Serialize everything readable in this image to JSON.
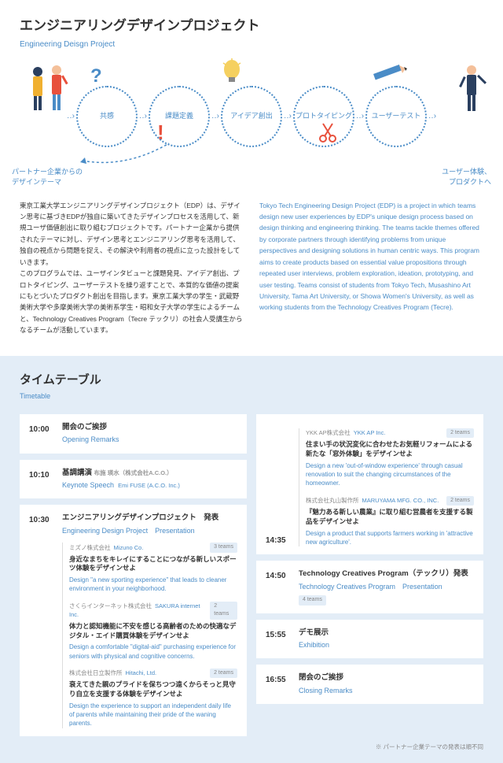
{
  "header": {
    "title_jp": "エンジニアリングデザインプロジェクト",
    "title_en": "Engineering Deisgn Project"
  },
  "process": {
    "steps": [
      "共感",
      "課題定義",
      "アイデア創出",
      "プロトタイピング",
      "ユーザーテスト"
    ],
    "label_left": "パートナー企業からの\nデザインテーマ",
    "label_right": "ユーザー体験、\nプロダクトへ",
    "colors": {
      "circle_border": "#4a8cc7",
      "accent": "#e8503c"
    }
  },
  "description": {
    "jp": "東京工業大学エンジニアリングデザインプロジェクト（EDP）は、デザイン思考に基づきEDPが独自に築いてきたデザインプロセスを活用して、新規ユーザ価値創出に取り組むプロジェクトです。パートナー企業から提供されたテーマに対し、デザイン思考とエンジニアリング思考を活用して、独自の視点から問題を捉え、その解決や利用者の視点に立った設計をしていきます。\nこのプログラムでは、ユーザインタビューと課題発見、アイデア創出、プロトタイピング、ユーザーテストを繰り返すことで、本質的な価値の提案にもとづいたプロダクト創出を目指します。東京工業大学の学生・武蔵野美術大学や多摩美術大学の美術系学生・昭和女子大学の学生によるチームと、Technology Creatives Program（Tecre テックリ）の社会人受講生からなるチームが活動しています。",
    "en": "Tokyo Tech Engineering Design Project (EDP) is a project in which teams design new user experiences by EDP's unique design process based on design thinking and engineering thinking. The teams tackle themes offered by corporate partners through identifying problems from unique perspectives and designing solutions in human centric ways. This program aims to create products based on essential value propositions through repeated user interviews, problem exploration, ideation, prototyping, and user testing. Teams consist of students from Tokyo Tech, Musashino Art University, Tama Art University, or Showa Women's University, as well as working students from the Technology Creatives Program (Tecre)."
  },
  "timetable": {
    "title_jp": "タイムテーブル",
    "title_en": "Timetable",
    "footnote": "※ パートナー企業テーマの発表は順不同",
    "left": [
      {
        "time": "10:00",
        "jp": "開会のご挨拶",
        "en": "Opening Remarks"
      },
      {
        "time": "10:10",
        "jp": "基調講演",
        "en": "Keynote Speech",
        "speaker_jp": "布施 瑛水（株式会社A.C.O.）",
        "speaker_en": "Emi FUSE (A.C.O. Inc.)"
      },
      {
        "time": "10:30",
        "jp": "エンジニアリングデザインプロジェクト　発表",
        "en": "Engineering Design Project　Presentation",
        "subs": [
          {
            "company_jp": "ミズノ株式会社",
            "company_en": "Mizuno Co.",
            "teams": "3 teams",
            "theme_jp": "身近なまちをキレイにすることにつながる新しいスポーツ体験をデザインせよ",
            "theme_en": "Design \"a new sporting experience\" that leads to cleaner environment in your neighborhood."
          },
          {
            "company_jp": "さくらインターネット株式会社",
            "company_en": "SAKURA internet Inc.",
            "teams": "2 teams",
            "theme_jp": "体力と認知機能に不安を感じる高齢者のための快適なデジタル・エイド購買体験をデザインせよ",
            "theme_en": "Design a comfortable \"digital-aid\" purchasing experience for seniors with physical and cognitive concerns."
          },
          {
            "company_jp": "株式会社日立製作所",
            "company_en": "Hitachi, Ltd.",
            "teams": "2 teams",
            "theme_jp": "衰えてきた親のプライドを保ちつつ遠くからそっと見守り自立を支援する体験をデザインせよ",
            "theme_en": "Design the experience to support an independent daily life of parents while maintaining their pride of the waning parents."
          }
        ]
      }
    ],
    "right": [
      {
        "time": "",
        "subs": [
          {
            "company_jp": "YKK AP株式会社",
            "company_en": "YKK AP Inc.",
            "teams": "2 teams",
            "theme_jp": "住まい手の状況変化に合わせたお気軽リフォームによる新たな「窓外体験」をデザインせよ",
            "theme_en": "Design a new 'out-of-window experience' through casual renovation to suit the changing circumstances of the homeowner."
          },
          {
            "company_jp": "株式会社丸山製作所",
            "company_en": "MARUYAMA MFG. CO., INC.",
            "teams": "2 teams",
            "theme_jp": "『魅力ある新しい農業』に取り組む営農者を支援する製品をデザインせよ",
            "theme_en": "Design a product that supports farmers working in 'attractive new agriculture'."
          }
        ],
        "end_time": "14:35"
      },
      {
        "time": "14:50",
        "jp": "Technology Creatives Program（テックリ）発表",
        "en": "Technology Creatives Program　Presentation",
        "badge": "4 teams"
      },
      {
        "time": "15:55",
        "jp": "デモ展示",
        "en": "Exhibition"
      },
      {
        "time": "16:55",
        "jp": "閉会のご挨拶",
        "en": "Closing Remarks"
      }
    ]
  }
}
